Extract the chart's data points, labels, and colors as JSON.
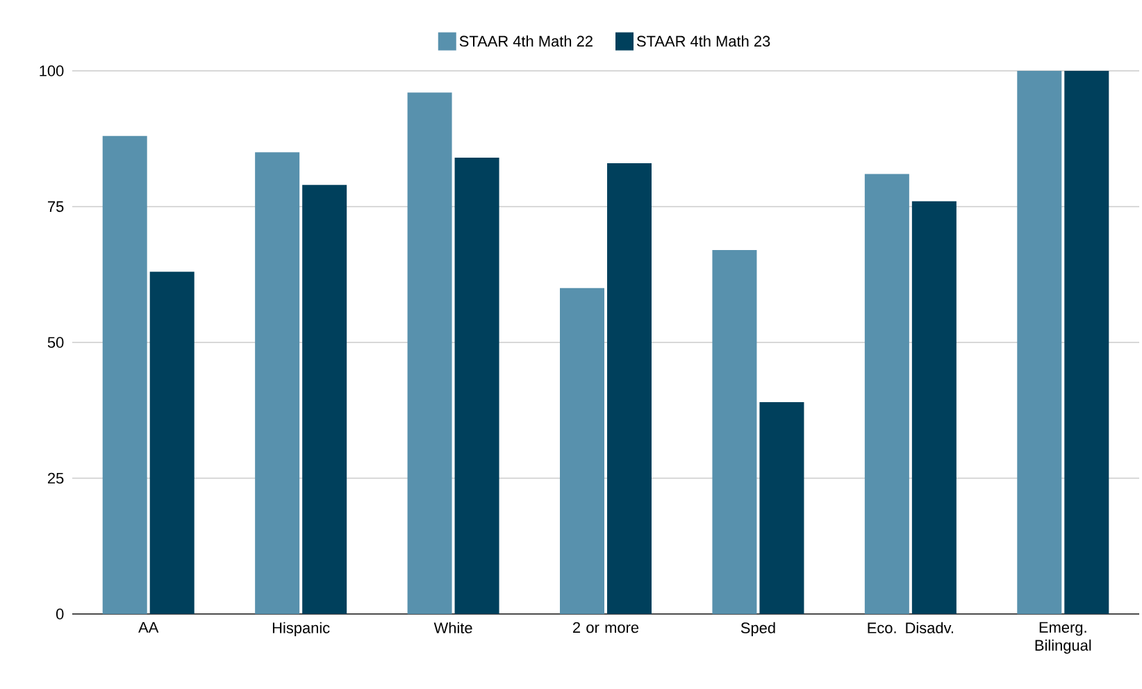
{
  "chart_data": {
    "type": "bar",
    "categories": [
      "AA",
      "Hispanic",
      "White",
      "2 or more",
      "Sped",
      "Eco. Disadv.",
      "Emerg. Bilingual"
    ],
    "series": [
      {
        "name": "STAAR 4th Math 22",
        "color": "#5891ad",
        "values": [
          88,
          85,
          96,
          60,
          67,
          81,
          100
        ]
      },
      {
        "name": "STAAR 4th Math 23",
        "color": "#00405c",
        "values": [
          63,
          79,
          84,
          83,
          39,
          76,
          100
        ]
      }
    ],
    "ylim": [
      0,
      100
    ],
    "yticks": [
      0,
      25,
      50,
      75,
      100
    ],
    "grid": "y",
    "legend": "top"
  }
}
